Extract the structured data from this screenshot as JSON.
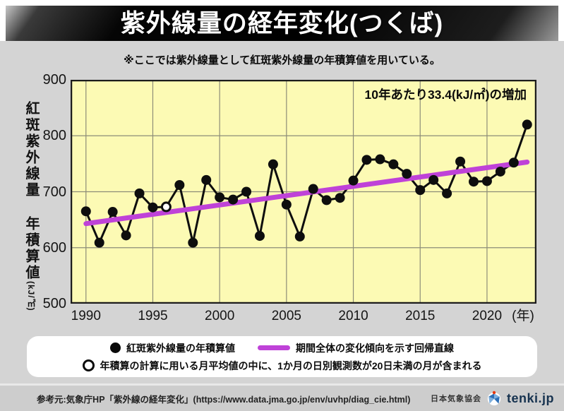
{
  "header": {
    "title": "紫外線量の経年変化(つくば)",
    "subtitle": "※ここでは紫外線量として紅斑紫外線量の年積算値を用いている。"
  },
  "chart_data": {
    "type": "line",
    "title": "紫外線量の経年変化(つくば)",
    "ylabel_main": "紅斑紫外線量 年積算値",
    "ylabel_unit": "(kJ/㎡)",
    "x_unit_label": "(年)",
    "annotation": "10年あたり33.4(kJ/㎡)の増加",
    "ylim": [
      500,
      900
    ],
    "xlim": [
      1988.85,
      2023.7
    ],
    "yticks": [
      900,
      800,
      700,
      600,
      500
    ],
    "xticks": [
      1990,
      1995,
      2000,
      2005,
      2010,
      2015,
      2020
    ],
    "grid": true,
    "legend_position": "bottom",
    "series": [
      {
        "name": "紅斑紫外線量の年積算値",
        "x": [
          1990,
          1991,
          1992,
          1993,
          1994,
          1995,
          1996,
          1997,
          1998,
          1999,
          2000,
          2001,
          2002,
          2003,
          2004,
          2005,
          2006,
          2007,
          2008,
          2009,
          2010,
          2011,
          2012,
          2013,
          2014,
          2015,
          2016,
          2017,
          2018,
          2019,
          2020,
          2021,
          2022,
          2023
        ],
        "values": [
          665,
          609,
          664,
          622,
          697,
          672,
          673,
          712,
          609,
          721,
          690,
          686,
          700,
          621,
          749,
          677,
          620,
          705,
          685,
          689,
          720,
          757,
          758,
          749,
          732,
          703,
          721,
          697,
          754,
          718,
          719,
          736,
          752,
          820
        ]
      }
    ],
    "open_circle_years": [
      1996
    ],
    "trend": {
      "name": "期間全体の変化傾向を示す回帰直線",
      "x1": 1990,
      "y1": 643,
      "x2": 2023,
      "y2": 753,
      "slope_per_decade": 33.4
    },
    "colors": {
      "plot_bg": "#fcfab4",
      "grid": "#8d8d78",
      "data": "#0e0e0e",
      "trend": "#bf42d8",
      "open_fill": "#ffffff",
      "border": "#1c1c1c"
    }
  },
  "legend": {
    "item_filled": "紅斑紫外線量の年積算値",
    "item_trend": "期間全体の変化傾向を示す回帰直線",
    "item_open": "年積算の計算に用いる月平均値の中に、1か月の日別観測数が20日未満の月が含まれる"
  },
  "footer": {
    "source": "参考元:気象庁HP「紫外線の経年変化」(https://www.data.jma.go.jp/env/uvhp/diag_cie.html)",
    "org": "日本気象協会",
    "brand": "tenki.jp"
  }
}
